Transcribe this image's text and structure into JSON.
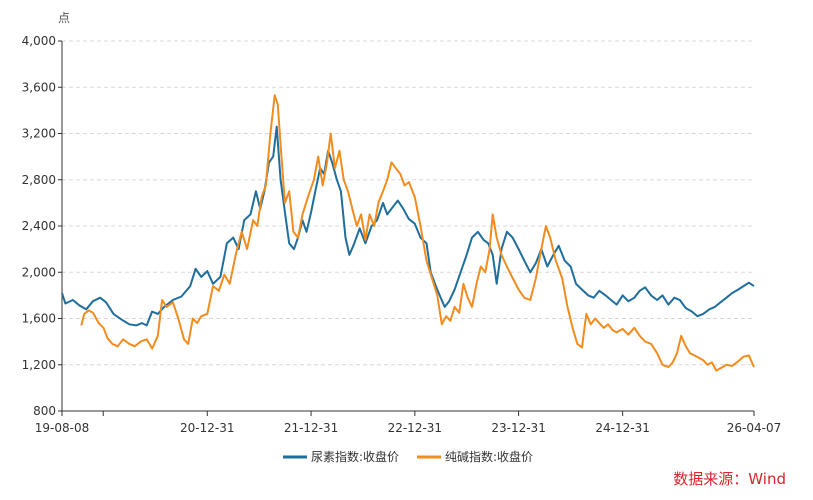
{
  "chart_data": {
    "type": "line",
    "y_unit": "点",
    "ylim": [
      800,
      4000
    ],
    "y_ticks": [
      "4,000",
      "3,600",
      "3,200",
      "2,800",
      "2,400",
      "2,000",
      "1,600",
      "1,200",
      "800"
    ],
    "y_tick_values": [
      4000,
      3600,
      3200,
      2800,
      2400,
      2000,
      1600,
      1200,
      800
    ],
    "x_ticks": [
      "19-08-08",
      "20-12-31",
      "21-12-31",
      "22-12-31",
      "23-12-31",
      "24-12-31",
      "26-04-07"
    ],
    "x_tick_dates": [
      "2019-08-08",
      "2020-12-31",
      "2021-12-31",
      "2022-12-31",
      "2023-12-31",
      "2024-12-31",
      "2026-04-07"
    ],
    "extra_tick_dates": [
      "2019-12-31"
    ],
    "xlim": [
      "2019-08-08",
      "2026-04-07"
    ],
    "grid": true,
    "legend_position": "bottom",
    "source": "数据来源：Wind",
    "series": [
      {
        "name": "尿素指数:收盘价",
        "color": "#1f6e9c",
        "points": [
          [
            "2019-08-08",
            1820
          ],
          [
            "2019-08-20",
            1730
          ],
          [
            "2019-09-15",
            1760
          ],
          [
            "2019-10-10",
            1710
          ],
          [
            "2019-11-01",
            1680
          ],
          [
            "2019-11-25",
            1750
          ],
          [
            "2019-12-20",
            1780
          ],
          [
            "2020-01-10",
            1740
          ],
          [
            "2020-02-05",
            1640
          ],
          [
            "2020-03-05",
            1590
          ],
          [
            "2020-04-01",
            1550
          ],
          [
            "2020-04-25",
            1540
          ],
          [
            "2020-05-15",
            1560
          ],
          [
            "2020-06-01",
            1540
          ],
          [
            "2020-06-20",
            1660
          ],
          [
            "2020-07-10",
            1640
          ],
          [
            "2020-08-01",
            1700
          ],
          [
            "2020-09-01",
            1760
          ],
          [
            "2020-10-01",
            1790
          ],
          [
            "2020-11-01",
            1880
          ],
          [
            "2020-11-20",
            2030
          ],
          [
            "2020-12-10",
            1960
          ],
          [
            "2020-12-31",
            2010
          ],
          [
            "2021-01-20",
            1900
          ],
          [
            "2021-02-15",
            1960
          ],
          [
            "2021-03-10",
            2250
          ],
          [
            "2021-04-01",
            2300
          ],
          [
            "2021-04-20",
            2200
          ],
          [
            "2021-05-10",
            2450
          ],
          [
            "2021-06-01",
            2500
          ],
          [
            "2021-06-20",
            2700
          ],
          [
            "2021-07-05",
            2550
          ],
          [
            "2021-07-20",
            2700
          ],
          [
            "2021-08-05",
            2950
          ],
          [
            "2021-08-20",
            3000
          ],
          [
            "2021-09-01",
            3260
          ],
          [
            "2021-09-15",
            2800
          ],
          [
            "2021-10-01",
            2500
          ],
          [
            "2021-10-15",
            2250
          ],
          [
            "2021-11-01",
            2200
          ],
          [
            "2021-11-15",
            2300
          ],
          [
            "2021-12-01",
            2450
          ],
          [
            "2021-12-15",
            2350
          ],
          [
            "2021-12-31",
            2520
          ],
          [
            "2022-01-15",
            2700
          ],
          [
            "2022-02-01",
            2900
          ],
          [
            "2022-02-15",
            2850
          ],
          [
            "2022-03-01",
            3050
          ],
          [
            "2022-03-15",
            2950
          ],
          [
            "2022-04-01",
            2800
          ],
          [
            "2022-04-15",
            2700
          ],
          [
            "2022-05-01",
            2300
          ],
          [
            "2022-05-15",
            2150
          ],
          [
            "2022-06-01",
            2250
          ],
          [
            "2022-06-20",
            2380
          ],
          [
            "2022-07-10",
            2250
          ],
          [
            "2022-08-01",
            2400
          ],
          [
            "2022-08-20",
            2450
          ],
          [
            "2022-09-10",
            2600
          ],
          [
            "2022-09-25",
            2500
          ],
          [
            "2022-10-10",
            2550
          ],
          [
            "2022-11-01",
            2620
          ],
          [
            "2022-11-20",
            2550
          ],
          [
            "2022-12-10",
            2460
          ],
          [
            "2022-12-31",
            2420
          ],
          [
            "2023-01-20",
            2300
          ],
          [
            "2023-02-10",
            2250
          ],
          [
            "2023-02-25",
            2000
          ],
          [
            "2023-03-15",
            1880
          ],
          [
            "2023-04-01",
            1780
          ],
          [
            "2023-04-15",
            1700
          ],
          [
            "2023-05-01",
            1750
          ],
          [
            "2023-05-20",
            1850
          ],
          [
            "2023-06-10",
            2000
          ],
          [
            "2023-07-01",
            2150
          ],
          [
            "2023-07-20",
            2300
          ],
          [
            "2023-08-10",
            2350
          ],
          [
            "2023-08-30",
            2280
          ],
          [
            "2023-09-15",
            2250
          ],
          [
            "2023-10-01",
            2150
          ],
          [
            "2023-10-15",
            1900
          ],
          [
            "2023-11-01",
            2200
          ],
          [
            "2023-11-20",
            2350
          ],
          [
            "2023-12-10",
            2300
          ],
          [
            "2023-12-31",
            2200
          ],
          [
            "2024-01-20",
            2100
          ],
          [
            "2024-02-10",
            2000
          ],
          [
            "2024-03-01",
            2080
          ],
          [
            "2024-03-20",
            2200
          ],
          [
            "2024-04-10",
            2050
          ],
          [
            "2024-05-01",
            2150
          ],
          [
            "2024-05-20",
            2230
          ],
          [
            "2024-06-10",
            2100
          ],
          [
            "2024-07-01",
            2050
          ],
          [
            "2024-07-20",
            1900
          ],
          [
            "2024-08-10",
            1850
          ],
          [
            "2024-09-01",
            1800
          ],
          [
            "2024-09-20",
            1780
          ],
          [
            "2024-10-10",
            1840
          ],
          [
            "2024-11-01",
            1800
          ],
          [
            "2024-11-20",
            1760
          ],
          [
            "2024-12-10",
            1720
          ],
          [
            "2024-12-31",
            1800
          ],
          [
            "2025-01-20",
            1750
          ],
          [
            "2025-02-10",
            1780
          ],
          [
            "2025-03-01",
            1840
          ],
          [
            "2025-03-20",
            1870
          ],
          [
            "2025-04-10",
            1800
          ],
          [
            "2025-05-01",
            1760
          ],
          [
            "2025-05-20",
            1800
          ],
          [
            "2025-06-10",
            1720
          ],
          [
            "2025-07-01",
            1780
          ],
          [
            "2025-07-20",
            1760
          ],
          [
            "2025-08-10",
            1690
          ],
          [
            "2025-09-01",
            1660
          ],
          [
            "2025-09-20",
            1620
          ],
          [
            "2025-10-10",
            1640
          ],
          [
            "2025-11-01",
            1680
          ],
          [
            "2025-11-20",
            1700
          ],
          [
            "2025-12-10",
            1740
          ],
          [
            "2025-12-31",
            1780
          ],
          [
            "2026-01-20",
            1820
          ],
          [
            "2026-02-10",
            1850
          ],
          [
            "2026-03-01",
            1880
          ],
          [
            "2026-03-20",
            1910
          ],
          [
            "2026-04-07",
            1880
          ]
        ]
      },
      {
        "name": "纯碱指数:收盘价",
        "color": "#f28c1e",
        "points": [
          [
            "2019-10-15",
            1540
          ],
          [
            "2019-10-25",
            1640
          ],
          [
            "2019-11-10",
            1670
          ],
          [
            "2019-11-25",
            1650
          ],
          [
            "2019-12-15",
            1560
          ],
          [
            "2020-01-01",
            1520
          ],
          [
            "2020-01-15",
            1430
          ],
          [
            "2020-02-01",
            1380
          ],
          [
            "2020-02-20",
            1360
          ],
          [
            "2020-03-10",
            1420
          ],
          [
            "2020-04-01",
            1380
          ],
          [
            "2020-04-20",
            1360
          ],
          [
            "2020-05-10",
            1400
          ],
          [
            "2020-06-01",
            1420
          ],
          [
            "2020-06-20",
            1340
          ],
          [
            "2020-07-10",
            1450
          ],
          [
            "2020-07-25",
            1760
          ],
          [
            "2020-08-10",
            1700
          ],
          [
            "2020-09-01",
            1740
          ],
          [
            "2020-09-20",
            1600
          ],
          [
            "2020-10-10",
            1420
          ],
          [
            "2020-10-25",
            1380
          ],
          [
            "2020-11-10",
            1600
          ],
          [
            "2020-11-25",
            1560
          ],
          [
            "2020-12-10",
            1620
          ],
          [
            "2020-12-31",
            1640
          ],
          [
            "2021-01-20",
            1880
          ],
          [
            "2021-02-10",
            1840
          ],
          [
            "2021-03-01",
            1980
          ],
          [
            "2021-03-20",
            1900
          ],
          [
            "2021-04-10",
            2150
          ],
          [
            "2021-05-01",
            2350
          ],
          [
            "2021-05-20",
            2200
          ],
          [
            "2021-06-10",
            2450
          ],
          [
            "2021-06-25",
            2400
          ],
          [
            "2021-07-10",
            2650
          ],
          [
            "2021-07-25",
            2750
          ],
          [
            "2021-08-10",
            3200
          ],
          [
            "2021-08-25",
            3530
          ],
          [
            "2021-09-05",
            3450
          ],
          [
            "2021-09-15",
            3100
          ],
          [
            "2021-09-30",
            2600
          ],
          [
            "2021-10-15",
            2700
          ],
          [
            "2021-10-30",
            2350
          ],
          [
            "2021-11-15",
            2300
          ],
          [
            "2021-12-01",
            2500
          ],
          [
            "2021-12-20",
            2650
          ],
          [
            "2022-01-10",
            2800
          ],
          [
            "2022-01-25",
            3000
          ],
          [
            "2022-02-10",
            2750
          ],
          [
            "2022-02-25",
            2950
          ],
          [
            "2022-03-10",
            3200
          ],
          [
            "2022-03-25",
            2900
          ],
          [
            "2022-04-10",
            3050
          ],
          [
            "2022-04-25",
            2800
          ],
          [
            "2022-05-10",
            2700
          ],
          [
            "2022-05-25",
            2550
          ],
          [
            "2022-06-10",
            2400
          ],
          [
            "2022-06-25",
            2500
          ],
          [
            "2022-07-10",
            2280
          ],
          [
            "2022-07-25",
            2500
          ],
          [
            "2022-08-10",
            2400
          ],
          [
            "2022-08-25",
            2600
          ],
          [
            "2022-09-10",
            2700
          ],
          [
            "2022-09-25",
            2800
          ],
          [
            "2022-10-10",
            2950
          ],
          [
            "2022-10-25",
            2900
          ],
          [
            "2022-11-10",
            2850
          ],
          [
            "2022-11-25",
            2750
          ],
          [
            "2022-12-10",
            2780
          ],
          [
            "2022-12-31",
            2650
          ],
          [
            "2023-01-20",
            2400
          ],
          [
            "2023-02-10",
            2100
          ],
          [
            "2023-03-01",
            1950
          ],
          [
            "2023-03-20",
            1800
          ],
          [
            "2023-04-05",
            1550
          ],
          [
            "2023-04-20",
            1620
          ],
          [
            "2023-05-05",
            1580
          ],
          [
            "2023-05-20",
            1700
          ],
          [
            "2023-06-05",
            1650
          ],
          [
            "2023-06-20",
            1900
          ],
          [
            "2023-07-05",
            1780
          ],
          [
            "2023-07-20",
            1700
          ],
          [
            "2023-08-05",
            1900
          ],
          [
            "2023-08-20",
            2050
          ],
          [
            "2023-09-05",
            2000
          ],
          [
            "2023-09-20",
            2200
          ],
          [
            "2023-10-01",
            2500
          ],
          [
            "2023-10-15",
            2300
          ],
          [
            "2023-11-01",
            2150
          ],
          [
            "2023-11-20",
            2050
          ],
          [
            "2023-12-10",
            1950
          ],
          [
            "2023-12-31",
            1850
          ],
          [
            "2024-01-20",
            1780
          ],
          [
            "2024-02-10",
            1760
          ],
          [
            "2024-03-01",
            1950
          ],
          [
            "2024-03-20",
            2200
          ],
          [
            "2024-04-05",
            2400
          ],
          [
            "2024-04-20",
            2300
          ],
          [
            "2024-05-10",
            2100
          ],
          [
            "2024-06-01",
            1950
          ],
          [
            "2024-06-20",
            1700
          ],
          [
            "2024-07-10",
            1500
          ],
          [
            "2024-07-25",
            1380
          ],
          [
            "2024-08-10",
            1350
          ],
          [
            "2024-08-25",
            1640
          ],
          [
            "2024-09-10",
            1550
          ],
          [
            "2024-09-25",
            1600
          ],
          [
            "2024-10-10",
            1560
          ],
          [
            "2024-10-25",
            1520
          ],
          [
            "2024-11-10",
            1550
          ],
          [
            "2024-11-25",
            1500
          ],
          [
            "2024-12-10",
            1480
          ],
          [
            "2024-12-31",
            1510
          ],
          [
            "2025-01-20",
            1460
          ],
          [
            "2025-02-10",
            1520
          ],
          [
            "2025-03-01",
            1450
          ],
          [
            "2025-03-20",
            1400
          ],
          [
            "2025-04-10",
            1380
          ],
          [
            "2025-05-01",
            1300
          ],
          [
            "2025-05-20",
            1200
          ],
          [
            "2025-06-10",
            1180
          ],
          [
            "2025-06-25",
            1220
          ],
          [
            "2025-07-10",
            1300
          ],
          [
            "2025-07-25",
            1450
          ],
          [
            "2025-08-10",
            1360
          ],
          [
            "2025-08-25",
            1300
          ],
          [
            "2025-09-10",
            1280
          ],
          [
            "2025-09-25",
            1260
          ],
          [
            "2025-10-10",
            1240
          ],
          [
            "2025-10-25",
            1200
          ],
          [
            "2025-11-10",
            1220
          ],
          [
            "2025-11-25",
            1150
          ],
          [
            "2025-12-10",
            1170
          ],
          [
            "2025-12-31",
            1200
          ],
          [
            "2026-01-20",
            1190
          ],
          [
            "2026-02-10",
            1230
          ],
          [
            "2026-03-01",
            1270
          ],
          [
            "2026-03-20",
            1280
          ],
          [
            "2026-04-07",
            1180
          ]
        ]
      }
    ]
  }
}
